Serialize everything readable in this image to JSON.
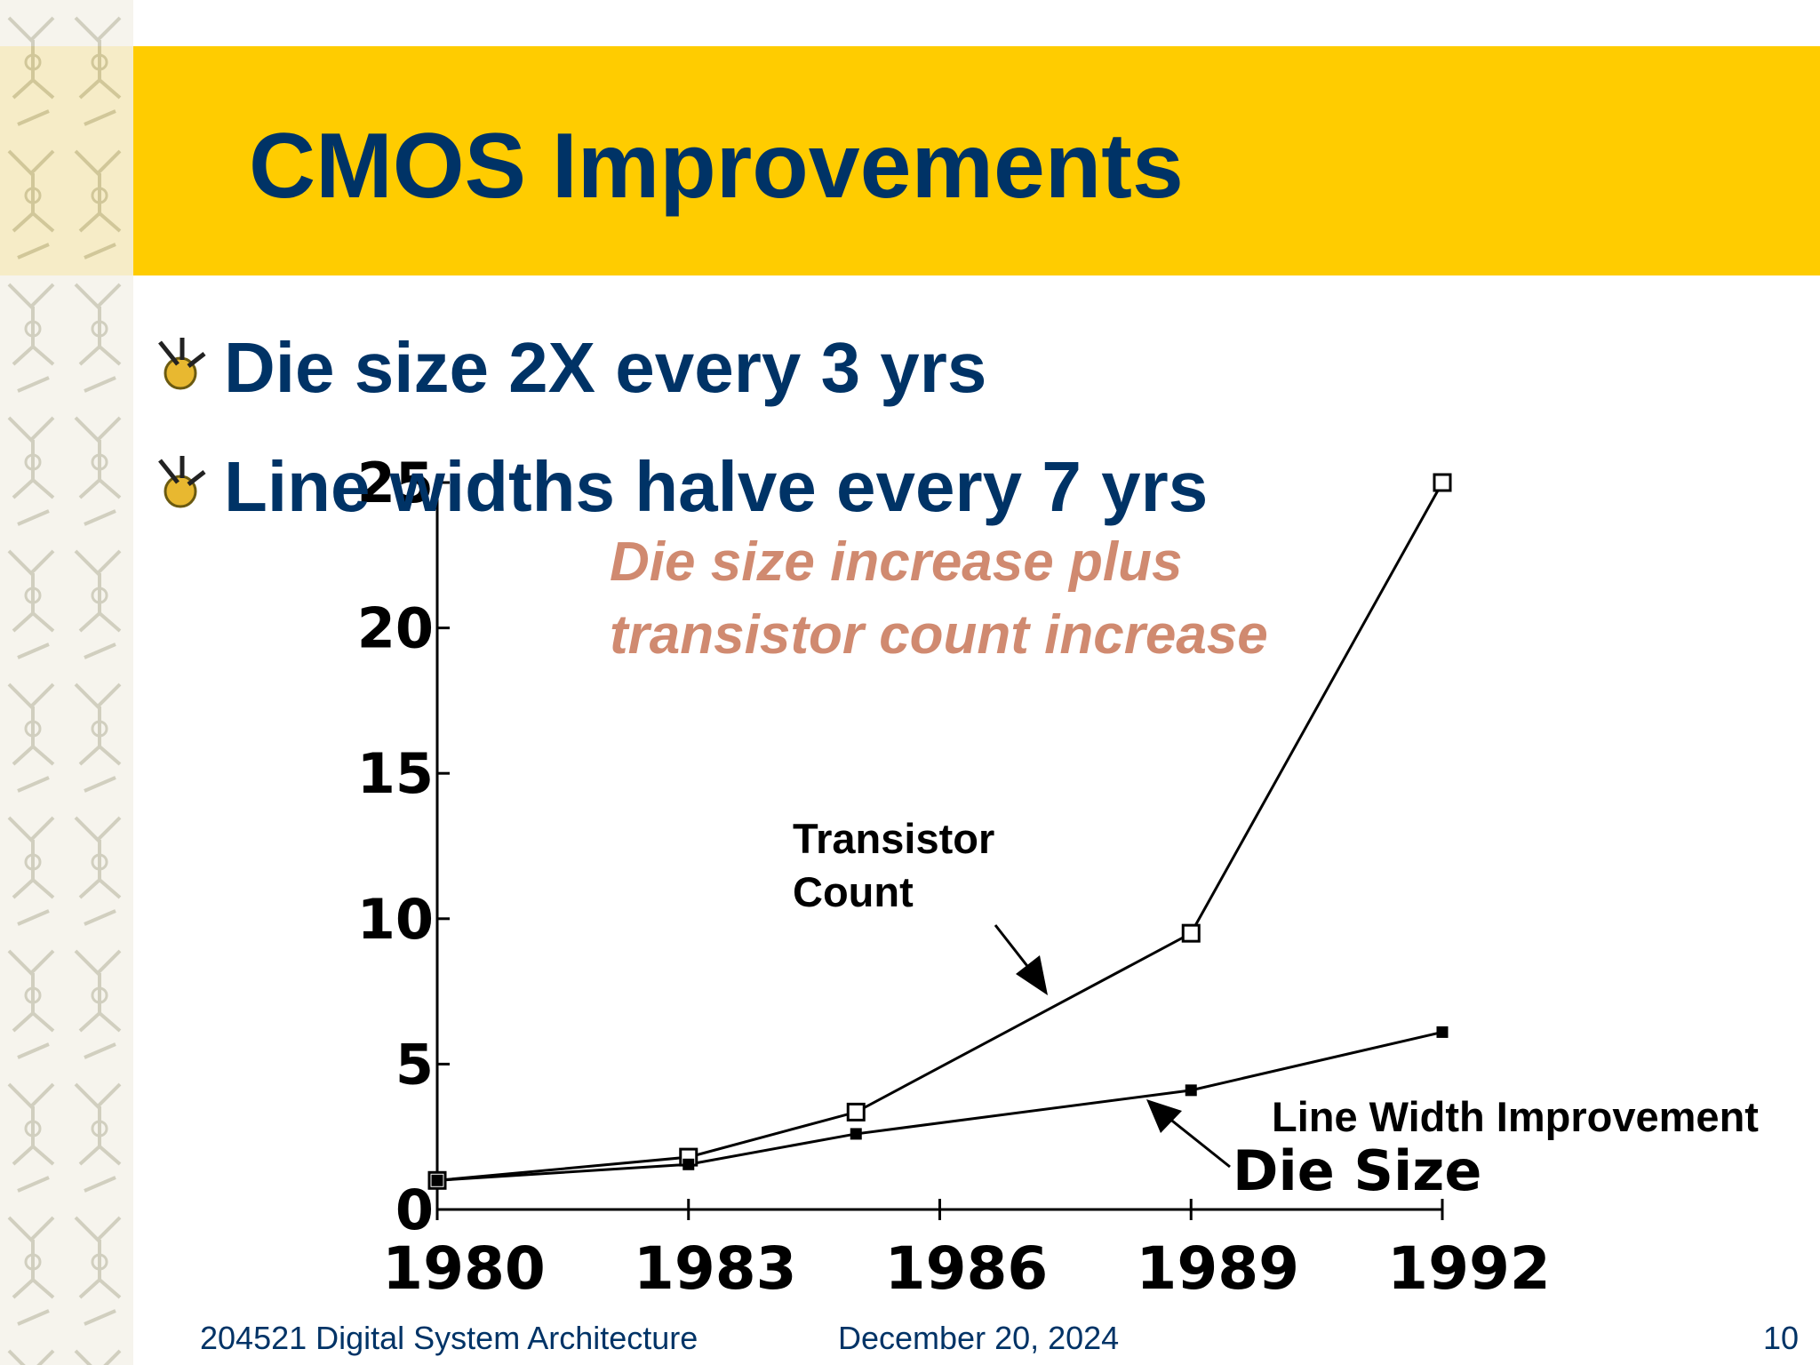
{
  "title": "CMOS Improvements",
  "bullets": [
    "Die size 2X every 3 yrs",
    "Line widths halve every 7 yrs"
  ],
  "footer": {
    "course": "204521 Digital System Architecture",
    "date": "December 20, 2024",
    "page": "10"
  },
  "chart_data": {
    "type": "line",
    "annotations": [
      "Die size increase plus",
      "transistor count increase",
      "Line Width Improvement"
    ],
    "x": [
      1980,
      1983,
      1985,
      1989,
      1992
    ],
    "series": [
      {
        "name": "Transistor Count",
        "color": "#000000",
        "marker": "open-square",
        "values": [
          1,
          1.8,
          3.35,
          9.5,
          25
        ]
      },
      {
        "name": "Die Size",
        "color": "#000000",
        "marker": "filled-square",
        "values": [
          1,
          1.55,
          2.6,
          4.1,
          6.1
        ]
      }
    ],
    "xlim": [
      1980,
      1992
    ],
    "xticks": [
      1980,
      1983,
      1986,
      1989,
      1992
    ],
    "ylim": [
      0,
      25
    ],
    "yticks": [
      0,
      5,
      10,
      15,
      20,
      25
    ]
  }
}
